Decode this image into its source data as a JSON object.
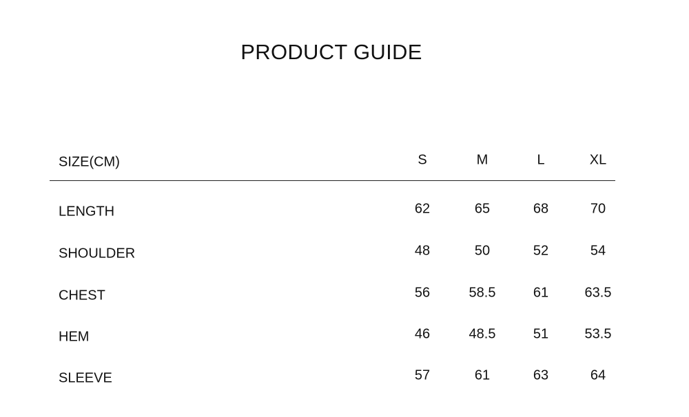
{
  "title": "PRODUCT GUIDE",
  "table": {
    "header_label": "SIZE(CM)",
    "sizes": [
      "S",
      "M",
      "L",
      "XL"
    ],
    "rows": [
      {
        "label": "LENGTH",
        "values": [
          "62",
          "65",
          "68",
          "70"
        ]
      },
      {
        "label": "SHOULDER",
        "values": [
          "48",
          "50",
          "52",
          "54"
        ]
      },
      {
        "label": "CHEST",
        "values": [
          "56",
          "58.5",
          "61",
          "63.5"
        ]
      },
      {
        "label": "HEM",
        "values": [
          "46",
          "48.5",
          "51",
          "53.5"
        ]
      },
      {
        "label": "SLEEVE",
        "values": [
          "57",
          "61",
          "63",
          "64"
        ]
      }
    ]
  }
}
